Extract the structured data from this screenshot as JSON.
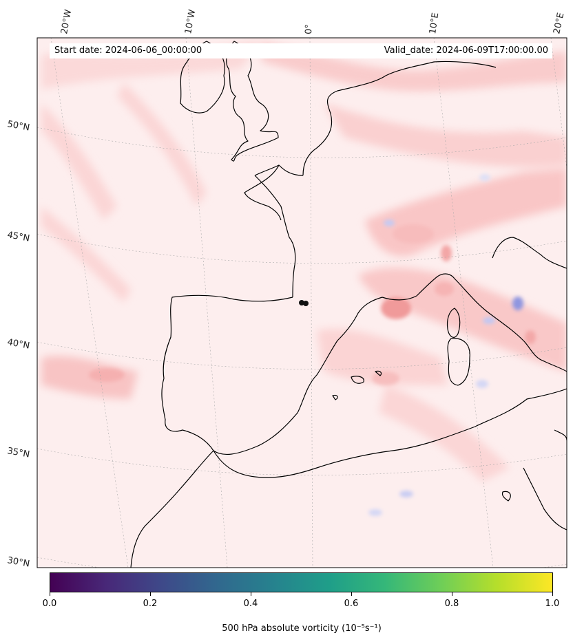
{
  "map": {
    "start_date": "Start date: 2024-06-06_00:00:00",
    "valid_date": "Valid_date: 2024-06-09T17:00:00.00",
    "lon_ticks": [
      "20°W",
      "10°W",
      "0°",
      "10°E",
      "20°E"
    ],
    "lat_ticks": [
      "50°N",
      "45°N",
      "40°N",
      "35°N",
      "30°N"
    ],
    "colors": {
      "background": "#fdeeee",
      "light_red": "#fbd6d6",
      "mid_red": "#f7b8b8",
      "strong_red": "#f08c8c",
      "blue": "#c9cdf3",
      "coastline": "#000000"
    }
  },
  "colorbar": {
    "ticks": [
      "0.0",
      "0.2",
      "0.4",
      "0.6",
      "0.8",
      "1.0"
    ],
    "label": "500 hPa absolute vorticity (10⁻⁵s⁻¹)",
    "cmap": "viridis"
  }
}
